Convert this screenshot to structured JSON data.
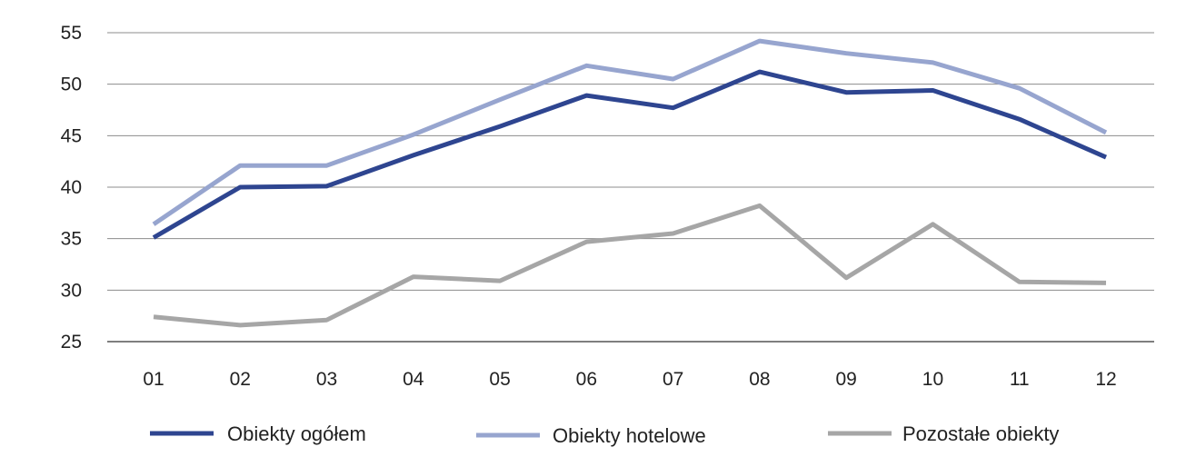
{
  "chart_data": {
    "type": "line",
    "x": [
      "01",
      "02",
      "03",
      "04",
      "05",
      "06",
      "07",
      "08",
      "09",
      "10",
      "11",
      "12"
    ],
    "ylim": [
      25,
      55
    ],
    "yticks": [
      25,
      30,
      35,
      40,
      45,
      50,
      55
    ],
    "grid": "horizontal",
    "legend_position": "bottom",
    "series": [
      {
        "name": "Obiekty ogółem",
        "color": "#2e4590",
        "values": [
          35.1,
          40.0,
          40.1,
          43.1,
          45.9,
          48.9,
          47.7,
          51.2,
          49.2,
          49.4,
          46.6,
          42.9
        ]
      },
      {
        "name": "Obiekty hotelowe",
        "color": "#97a5cf",
        "values": [
          36.4,
          42.1,
          42.1,
          45.1,
          48.5,
          51.8,
          50.5,
          54.2,
          53.0,
          52.1,
          49.6,
          45.3
        ]
      },
      {
        "name": "Pozostałe obiekty",
        "color": "#a6a6a6",
        "values": [
          27.4,
          26.6,
          27.1,
          31.3,
          30.9,
          34.7,
          35.5,
          38.2,
          31.2,
          36.4,
          30.8,
          30.7
        ]
      }
    ]
  }
}
